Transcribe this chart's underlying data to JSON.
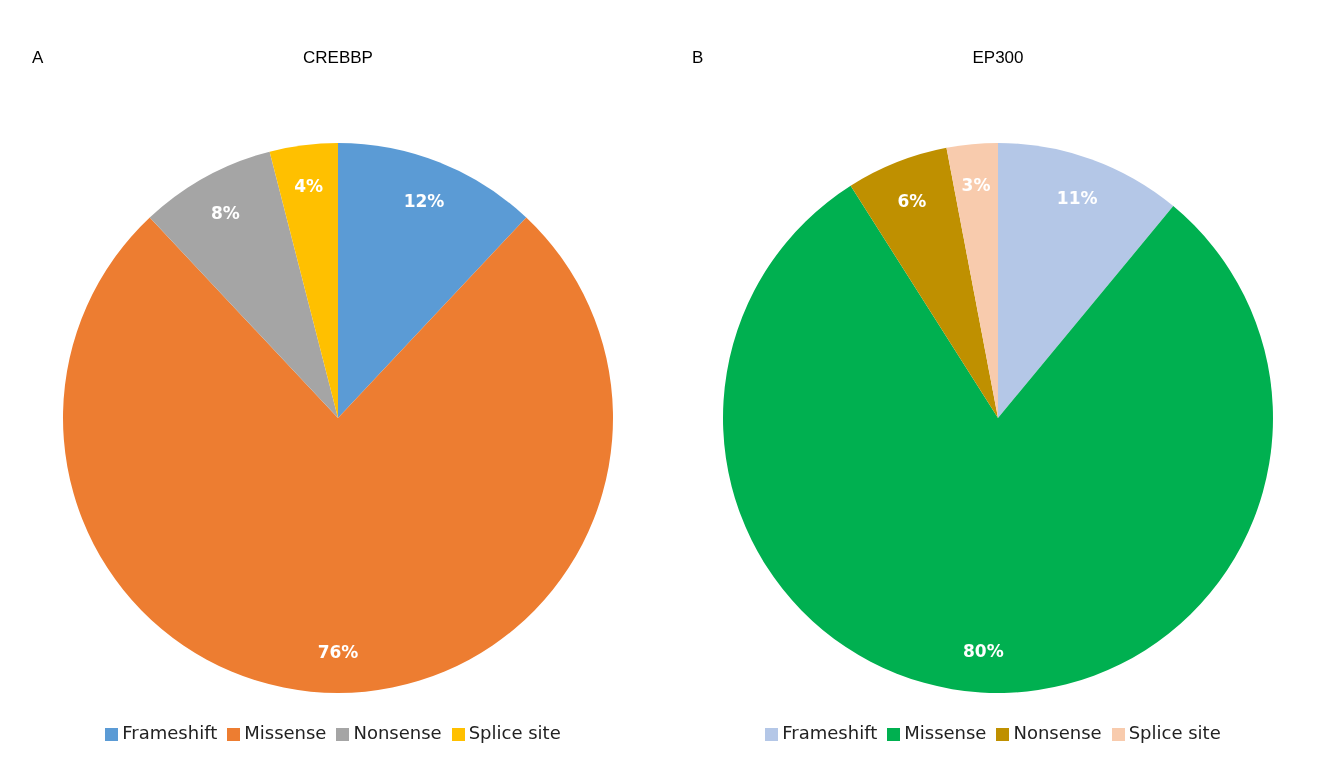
{
  "chart_data": [
    {
      "type": "pie",
      "title": "CREBBP",
      "annotations": [
        "A"
      ],
      "categories": [
        "Frameshift",
        "Missense",
        "Nonsense",
        "Splice site"
      ],
      "values": [
        12,
        76,
        8,
        4
      ],
      "value_labels": [
        "12%",
        "76%",
        "8%",
        "4%"
      ],
      "colors": [
        "#5b9bd5",
        "#ed7d31",
        "#a5a5a5",
        "#ffc000"
      ],
      "legend": "bottom"
    },
    {
      "type": "pie",
      "title": "EP300",
      "annotations": [
        "B"
      ],
      "categories": [
        "Frameshift",
        "Missense",
        "Nonsense",
        "Splice site"
      ],
      "values": [
        11,
        80,
        6,
        3
      ],
      "value_labels": [
        "11%",
        "80%",
        "6%",
        "3%"
      ],
      "colors": [
        "#b4c7e7",
        "#00b050",
        "#bf9000",
        "#f8cbad"
      ],
      "legend": "bottom"
    }
  ]
}
